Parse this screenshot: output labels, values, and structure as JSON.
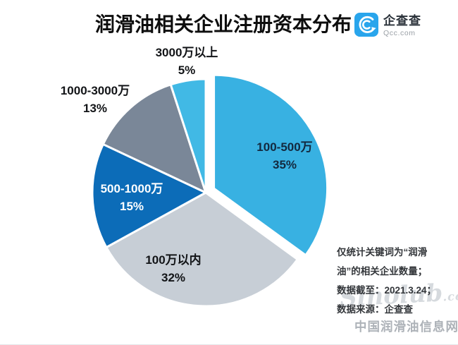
{
  "header": {
    "title": "润滑油相关企业注册资本分布",
    "logo": {
      "brand": "企查查",
      "domain": "Qcc.com",
      "color": "#29A5EC"
    }
  },
  "chart_data": {
    "type": "pie",
    "title": "润滑油相关企业注册资本分布",
    "unit": "%",
    "start_angle": "12 o'clock, clockwise",
    "slices": [
      {
        "label": "100-500万",
        "value": 35,
        "pct_text": "35%",
        "color": "#38B1E2",
        "explode": true
      },
      {
        "label": "100万以内",
        "value": 32,
        "pct_text": "32%",
        "color": "#C7CED6",
        "explode": false
      },
      {
        "label": "500-1000万",
        "value": 15,
        "pct_text": "15%",
        "color": "#0C6CB8",
        "explode": false
      },
      {
        "label": "1000-3000万",
        "value": 13,
        "pct_text": "13%",
        "color": "#7A8798",
        "explode": false
      },
      {
        "label": "3000万以上",
        "value": 5,
        "pct_text": "5%",
        "color": "#41B9E5",
        "explode": false
      }
    ]
  },
  "notes": {
    "lines": [
      "仅统计关键词为“润滑",
      "油”的相关企业数量；",
      "数据截至：2021.3.24；",
      "数据来源：企查查"
    ]
  },
  "watermark": {
    "logo_text": "Sinolub",
    "logo_suffix": ".com",
    "site_name": "中国润滑油信息网"
  }
}
